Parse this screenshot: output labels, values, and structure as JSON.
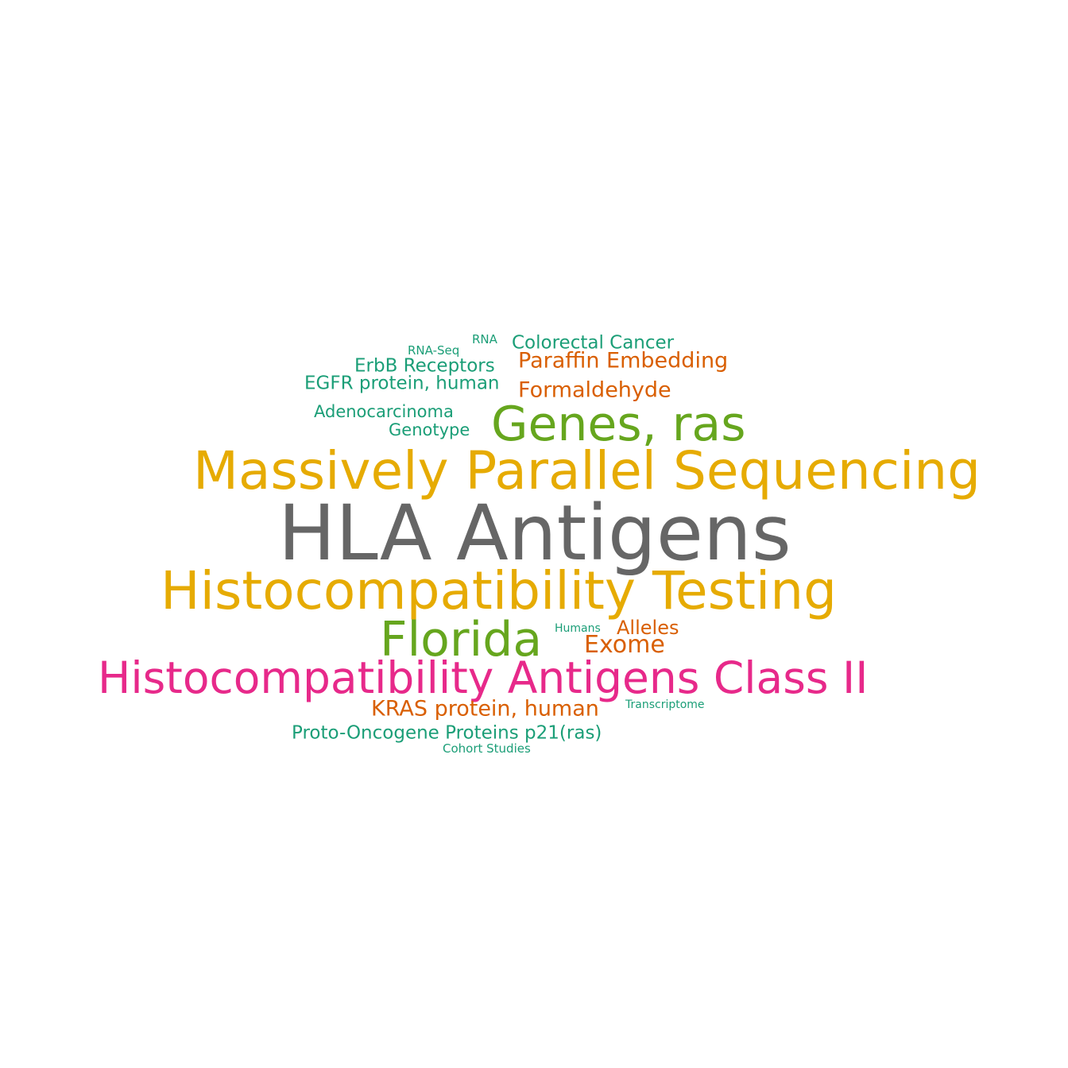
{
  "word_cloud": {
    "colors": {
      "gray": "#666666",
      "gold": "#E6AB02",
      "green": "#66A61E",
      "pink": "#E7298A",
      "orange": "#D95F02",
      "teal": "#1B9E77"
    },
    "words": {
      "hla_antigens": "HLA Antigens",
      "massively_parallel_sequencing": "Massively Parallel Sequencing",
      "histocompatibility_testing": "Histocompatibility Testing",
      "genes_ras": "Genes, ras",
      "florida": "Florida",
      "histocompatibility_antigens_class_ii": "Histocompatibility Antigens Class II",
      "paraffin_embedding": "Paraffin Embedding",
      "formaldehyde": "Formaldehyde",
      "colorectal_cancer": "Colorectal Cancer",
      "erbb_receptors": "ErbB Receptors",
      "egfr_protein_human": "EGFR protein, human",
      "adenocarcinoma": "Adenocarcinoma",
      "genotype": "Genotype",
      "rna_seq": "RNA-Seq",
      "rna": "RNA",
      "alleles": "Alleles",
      "exome": "Exome",
      "humans": "Humans",
      "kras_protein_human": "KRAS protein, human",
      "transcriptome": "Transcriptome",
      "proto_oncogene_proteins": "Proto-Oncogene Proteins p21(ras)",
      "cohort_studies": "Cohort Studies"
    }
  }
}
